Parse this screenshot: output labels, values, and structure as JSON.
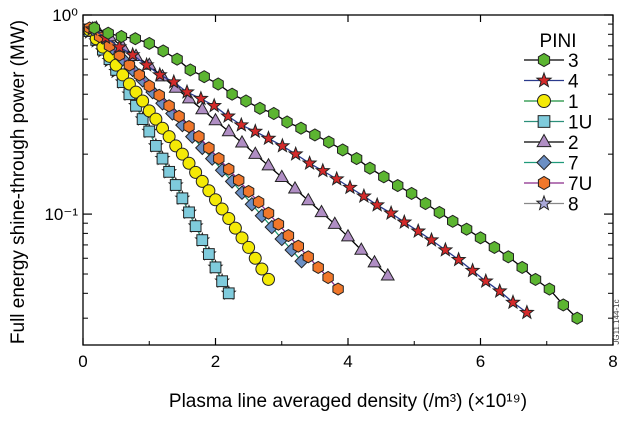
{
  "chart_data": {
    "type": "line",
    "x_axis": {
      "label": "Plasma line averaged density (/m³) (×10¹⁹)",
      "range": [
        0,
        8
      ],
      "ticks": [
        0,
        2,
        4,
        6,
        8
      ],
      "tick_labels": [
        "0",
        "2",
        "4",
        "6",
        "8"
      ]
    },
    "y_axis": {
      "label": "Full energy shine-through power (MW)",
      "scale": "log",
      "range": [
        0.022,
        1.0
      ],
      "ticks": [
        0.1,
        1.0
      ],
      "tick_labels": [
        "10⁻¹",
        "10⁰"
      ]
    },
    "legend": {
      "title": "PINI",
      "placement": "top-right"
    },
    "grid": false,
    "series": [
      {
        "name": "3",
        "color": "#5cb531",
        "line": "#000000",
        "marker": "hexagon",
        "x": [
          0.17,
          0.38,
          0.58,
          0.79,
          1.0,
          1.21,
          1.42,
          1.62,
          1.83,
          2.04,
          2.25,
          2.46,
          2.67,
          2.88,
          3.08,
          3.29,
          3.5,
          3.71,
          3.92,
          4.13,
          4.33,
          4.54,
          4.75,
          4.96,
          5.17,
          5.38,
          5.58,
          5.79,
          6.0,
          6.21,
          6.42,
          6.63,
          6.83,
          7.04,
          7.25,
          7.46
        ],
        "y": [
          0.86,
          0.81,
          0.78,
          0.76,
          0.72,
          0.66,
          0.6,
          0.53,
          0.49,
          0.45,
          0.4,
          0.37,
          0.34,
          0.32,
          0.29,
          0.27,
          0.25,
          0.23,
          0.21,
          0.19,
          0.17,
          0.154,
          0.139,
          0.127,
          0.113,
          0.102,
          0.092,
          0.084,
          0.076,
          0.068,
          0.061,
          0.054,
          0.047,
          0.042,
          0.035,
          0.03
        ]
      },
      {
        "name": "4",
        "color": "#d42a2a",
        "line": "#2a3a8c",
        "marker": "star",
        "x": [
          0.14,
          0.34,
          0.55,
          0.75,
          0.96,
          1.16,
          1.37,
          1.57,
          1.78,
          1.98,
          2.19,
          2.39,
          2.6,
          2.8,
          3.01,
          3.21,
          3.42,
          3.62,
          3.83,
          4.03,
          4.24,
          4.44,
          4.65,
          4.85,
          5.06,
          5.26,
          5.47,
          5.67,
          5.88,
          6.08,
          6.29,
          6.49,
          6.7
        ],
        "y": [
          0.85,
          0.77,
          0.69,
          0.63,
          0.56,
          0.5,
          0.46,
          0.41,
          0.38,
          0.35,
          0.31,
          0.28,
          0.26,
          0.24,
          0.22,
          0.2,
          0.18,
          0.165,
          0.15,
          0.136,
          0.123,
          0.111,
          0.101,
          0.091,
          0.082,
          0.074,
          0.066,
          0.059,
          0.052,
          0.046,
          0.041,
          0.036,
          0.032
        ]
      },
      {
        "name": "1",
        "color": "#f4ea06",
        "line": "#1b8f3c",
        "marker": "circle",
        "x": [
          0.1,
          0.2,
          0.3,
          0.4,
          0.5,
          0.6,
          0.7,
          0.8,
          0.9,
          1.0,
          1.1,
          1.2,
          1.3,
          1.4,
          1.5,
          1.6,
          1.7,
          1.8,
          1.9,
          2.0,
          2.1,
          2.2,
          2.3,
          2.4,
          2.5,
          2.6,
          2.7,
          2.8
        ],
        "y": [
          0.84,
          0.76,
          0.69,
          0.62,
          0.56,
          0.5,
          0.45,
          0.41,
          0.37,
          0.33,
          0.3,
          0.27,
          0.245,
          0.22,
          0.2,
          0.18,
          0.162,
          0.146,
          0.131,
          0.118,
          0.106,
          0.095,
          0.085,
          0.076,
          0.068,
          0.06,
          0.053,
          0.047
        ]
      },
      {
        "name": "1U",
        "color": "#7fcbdc",
        "line": "#2b8f7a",
        "marker": "square",
        "x": [
          0.1,
          0.2,
          0.3,
          0.4,
          0.5,
          0.6,
          0.7,
          0.8,
          0.9,
          1.0,
          1.1,
          1.2,
          1.3,
          1.4,
          1.5,
          1.6,
          1.7,
          1.8,
          1.9,
          2.0,
          2.1,
          2.2
        ],
        "y": [
          0.83,
          0.75,
          0.67,
          0.6,
          0.53,
          0.46,
          0.4,
          0.35,
          0.3,
          0.26,
          0.22,
          0.19,
          0.163,
          0.14,
          0.12,
          0.102,
          0.087,
          0.074,
          0.063,
          0.054,
          0.046,
          0.04
        ]
      },
      {
        "name": "2",
        "color": "#b08ec4",
        "line": "#000000",
        "marker": "triangle",
        "x": [
          0.2,
          0.4,
          0.6,
          0.8,
          1.0,
          1.2,
          1.4,
          1.6,
          1.8,
          2.0,
          2.2,
          2.4,
          2.6,
          2.8,
          3.0,
          3.2,
          3.4,
          3.6,
          3.8,
          4.0,
          4.2,
          4.4,
          4.6
        ],
        "y": [
          0.86,
          0.78,
          0.69,
          0.62,
          0.56,
          0.49,
          0.43,
          0.38,
          0.335,
          0.295,
          0.26,
          0.228,
          0.2,
          0.175,
          0.153,
          0.134,
          0.117,
          0.102,
          0.089,
          0.077,
          0.066,
          0.057,
          0.049
        ]
      },
      {
        "name": "7",
        "color": "#6b8fc4",
        "line": "#1f9a7a",
        "marker": "diamond",
        "x": [
          0.15,
          0.3,
          0.45,
          0.6,
          0.75,
          0.9,
          1.05,
          1.2,
          1.35,
          1.5,
          1.65,
          1.8,
          1.95,
          2.1,
          2.25,
          2.4,
          2.55,
          2.7,
          2.85,
          3.0,
          3.15,
          3.3
        ],
        "y": [
          0.85,
          0.77,
          0.68,
          0.6,
          0.53,
          0.47,
          0.41,
          0.36,
          0.32,
          0.28,
          0.245,
          0.215,
          0.19,
          0.166,
          0.146,
          0.128,
          0.112,
          0.098,
          0.086,
          0.075,
          0.066,
          0.058
        ]
      },
      {
        "name": "7U",
        "color": "#f0772a",
        "line": "#8b2a8b",
        "marker": "hexagon",
        "x": [
          0.1,
          0.25,
          0.4,
          0.55,
          0.7,
          0.85,
          1.0,
          1.15,
          1.3,
          1.45,
          1.6,
          1.75,
          1.9,
          2.05,
          2.2,
          2.35,
          2.5,
          2.65,
          2.8,
          2.95,
          3.1,
          3.25,
          3.4,
          3.55,
          3.7,
          3.85
        ],
        "y": [
          0.86,
          0.78,
          0.7,
          0.63,
          0.56,
          0.5,
          0.44,
          0.395,
          0.35,
          0.31,
          0.275,
          0.245,
          0.215,
          0.19,
          0.168,
          0.148,
          0.13,
          0.115,
          0.101,
          0.089,
          0.078,
          0.069,
          0.061,
          0.054,
          0.048,
          0.042
        ]
      },
      {
        "name": "8",
        "color": "#a9a8d8",
        "line": "#888888",
        "marker": "star",
        "x": [
          0.1,
          0.2,
          0.3,
          0.4,
          0.5,
          0.6,
          0.7,
          0.8,
          0.9,
          1.0,
          1.1,
          1.2,
          1.3,
          1.4,
          1.5,
          1.6,
          1.7,
          1.8,
          1.9,
          2.0,
          2.1,
          2.2
        ],
        "y": [
          0.82,
          0.74,
          0.66,
          0.59,
          0.52,
          0.46,
          0.4,
          0.35,
          0.3,
          0.26,
          0.22,
          0.19,
          0.163,
          0.14,
          0.12,
          0.102,
          0.087,
          0.074,
          0.063,
          0.054,
          0.046,
          0.04
        ]
      }
    ]
  },
  "figure_id": "JG11.144-1c"
}
